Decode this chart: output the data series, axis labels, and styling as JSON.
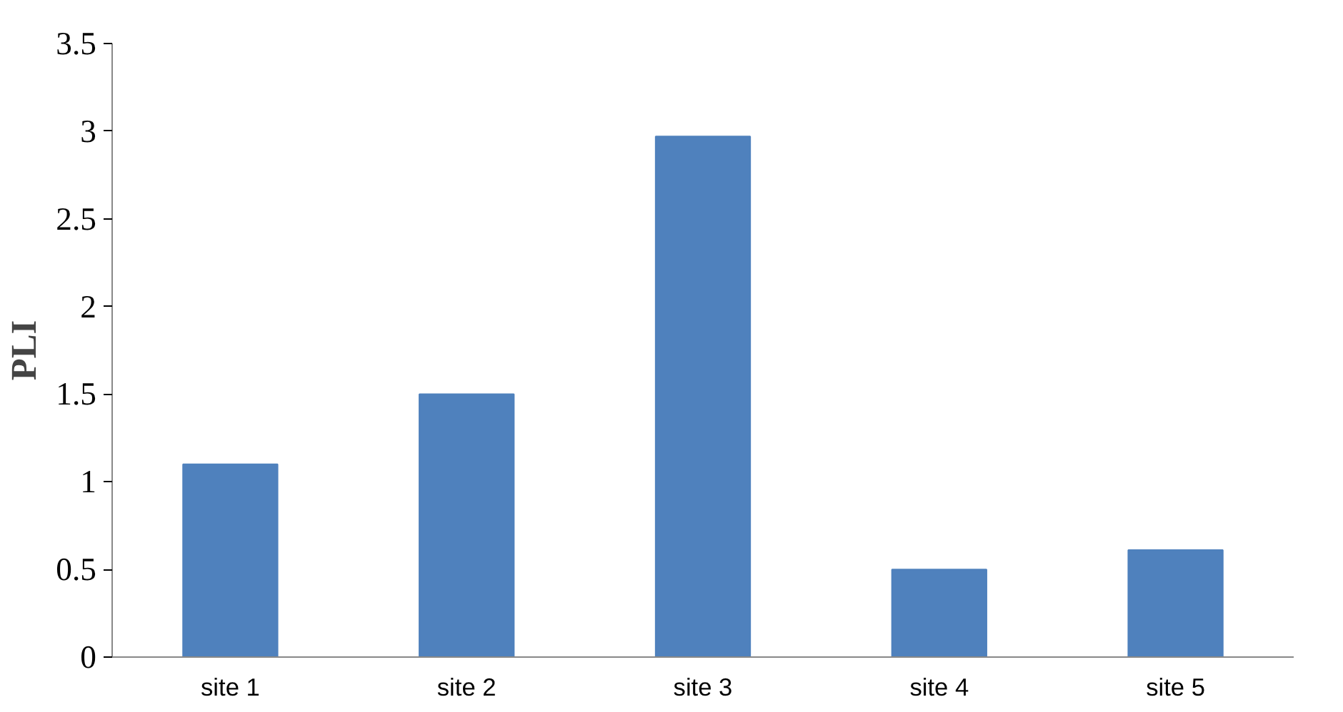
{
  "chart_data": {
    "type": "bar",
    "ylabel": "PLI",
    "categories": [
      "site 1",
      "site 2",
      "site 3",
      "site 4",
      "site 5"
    ],
    "values": [
      1.1,
      1.5,
      2.97,
      0.5,
      0.61
    ],
    "color": "#4f81bd",
    "ylim": [
      0,
      3.5
    ],
    "yticks": [
      0,
      0.5,
      1,
      1.5,
      2,
      2.5,
      3,
      3.5
    ],
    "grid": false
  }
}
